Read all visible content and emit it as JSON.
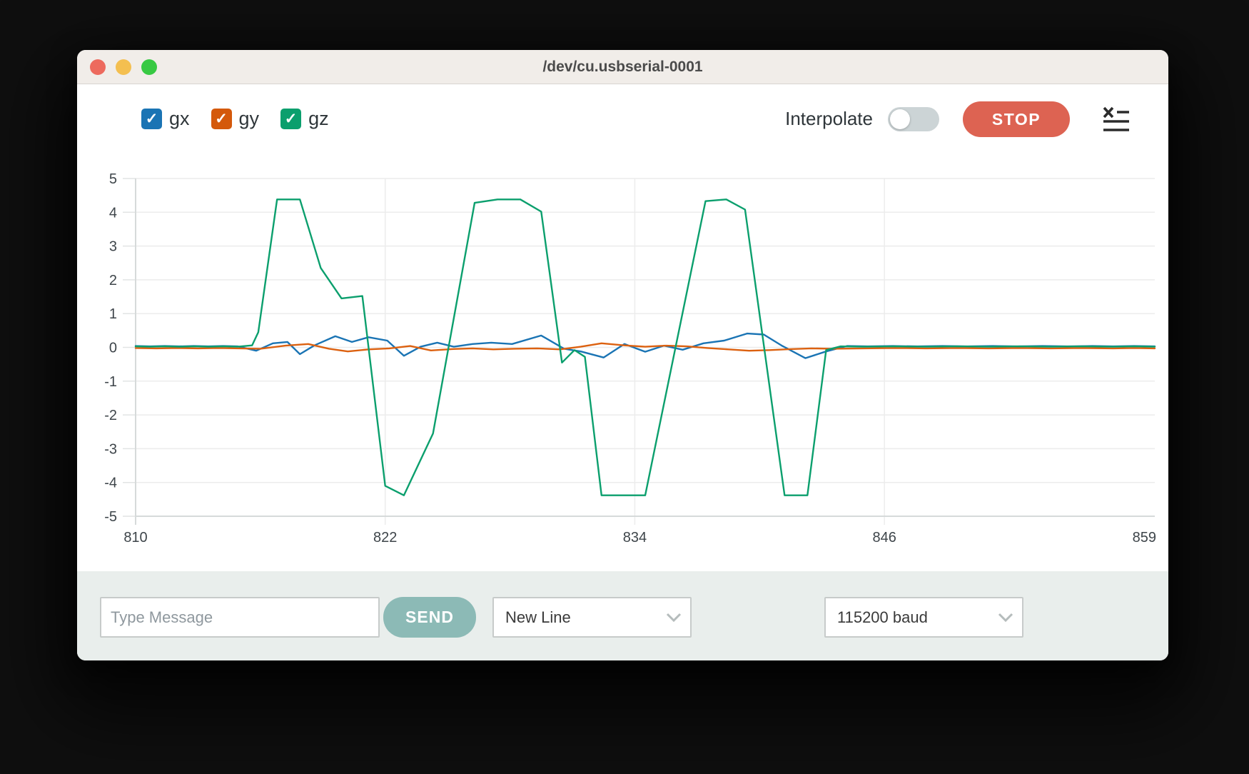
{
  "window": {
    "title": "/dev/cu.usbserial-0001",
    "traffic_lights": [
      "#ed6a5e",
      "#f4bf50",
      "#38c943"
    ]
  },
  "legend": {
    "items": [
      {
        "label": "gx",
        "color": "#1a74b4",
        "checked": true
      },
      {
        "label": "gy",
        "color": "#d4590b",
        "checked": true
      },
      {
        "label": "gz",
        "color": "#0b9f6d",
        "checked": true
      }
    ]
  },
  "toolbar": {
    "interpolate_label": "Interpolate",
    "interpolate_on": false,
    "stop_label": "STOP",
    "stop_color": "#dd6352"
  },
  "chart_data": {
    "type": "line",
    "title": "",
    "xlabel": "",
    "ylabel": "",
    "xlim": [
      810,
      859
    ],
    "ylim": [
      -5,
      5
    ],
    "x_ticks": [
      810,
      822,
      834,
      846,
      859
    ],
    "y_ticks": [
      5,
      4,
      3,
      2,
      1,
      0,
      -1,
      -2,
      -3,
      -4,
      -5
    ],
    "grid": true,
    "legend_position": "top-left-checkboxes",
    "series": [
      {
        "name": "gx",
        "color": "#1a74b4",
        "points": [
          [
            810,
            0.04
          ],
          [
            810.7,
            0.03
          ],
          [
            811.4,
            0.04
          ],
          [
            812.1,
            0.03
          ],
          [
            812.8,
            0.04
          ],
          [
            813.5,
            0.03
          ],
          [
            814.2,
            0.04
          ],
          [
            814.9,
            0.03
          ],
          [
            815.8,
            -0.1
          ],
          [
            816.6,
            0.12
          ],
          [
            817.3,
            0.16
          ],
          [
            817.9,
            -0.2
          ],
          [
            818.6,
            0.06
          ],
          [
            819.6,
            0.33
          ],
          [
            820.4,
            0.16
          ],
          [
            821.2,
            0.3
          ],
          [
            822.1,
            0.2
          ],
          [
            822.9,
            -0.25
          ],
          [
            823.7,
            0.02
          ],
          [
            824.5,
            0.14
          ],
          [
            825.3,
            0.02
          ],
          [
            826.2,
            0.1
          ],
          [
            827.1,
            0.14
          ],
          [
            828.1,
            0.1
          ],
          [
            829.5,
            0.35
          ],
          [
            830.6,
            -0.04
          ],
          [
            831.4,
            -0.12
          ],
          [
            832.5,
            -0.3
          ],
          [
            833.5,
            0.1
          ],
          [
            834.5,
            -0.13
          ],
          [
            835.4,
            0.05
          ],
          [
            836.3,
            -0.07
          ],
          [
            837.3,
            0.12
          ],
          [
            838.3,
            0.2
          ],
          [
            839.4,
            0.41
          ],
          [
            840.2,
            0.38
          ],
          [
            841.1,
            0.04
          ],
          [
            842.2,
            -0.32
          ],
          [
            843.2,
            -0.12
          ],
          [
            844.2,
            0.04
          ],
          [
            845.2,
            0.03
          ],
          [
            846.4,
            0.04
          ],
          [
            847.6,
            0.03
          ],
          [
            848.8,
            0.04
          ],
          [
            850,
            0.03
          ],
          [
            851.2,
            0.04
          ],
          [
            852.4,
            0.03
          ],
          [
            853.6,
            0.04
          ],
          [
            854.8,
            0.03
          ],
          [
            856,
            0.04
          ],
          [
            857,
            0.03
          ],
          [
            858,
            0.04
          ],
          [
            859,
            0.03
          ]
        ]
      },
      {
        "name": "gy",
        "color": "#dc6110",
        "points": [
          [
            810,
            -0.02
          ],
          [
            811,
            -0.03
          ],
          [
            812,
            -0.02
          ],
          [
            813,
            -0.03
          ],
          [
            814,
            -0.02
          ],
          [
            815,
            -0.03
          ],
          [
            816,
            -0.04
          ],
          [
            817.2,
            0.05
          ],
          [
            818.3,
            0.1
          ],
          [
            819.3,
            -0.04
          ],
          [
            820.2,
            -0.12
          ],
          [
            821.2,
            -0.06
          ],
          [
            822.2,
            -0.03
          ],
          [
            823.2,
            0.04
          ],
          [
            824.2,
            -0.09
          ],
          [
            825.2,
            -0.05
          ],
          [
            826.2,
            -0.03
          ],
          [
            827.2,
            -0.06
          ],
          [
            828.2,
            -0.04
          ],
          [
            829.3,
            -0.03
          ],
          [
            830.4,
            -0.06
          ],
          [
            831.4,
            0.02
          ],
          [
            832.4,
            0.12
          ],
          [
            833.5,
            0.06
          ],
          [
            834.5,
            0.02
          ],
          [
            835.5,
            0.05
          ],
          [
            836.5,
            0.03
          ],
          [
            837.5,
            -0.02
          ],
          [
            838.5,
            -0.06
          ],
          [
            839.5,
            -0.1
          ],
          [
            840.5,
            -0.08
          ],
          [
            841.5,
            -0.05
          ],
          [
            842.5,
            -0.03
          ],
          [
            843.5,
            -0.04
          ],
          [
            845,
            -0.03
          ],
          [
            846.5,
            -0.02
          ],
          [
            848,
            -0.03
          ],
          [
            849.5,
            -0.02
          ],
          [
            851,
            -0.03
          ],
          [
            852.5,
            -0.02
          ],
          [
            854,
            -0.03
          ],
          [
            855.5,
            -0.02
          ],
          [
            857,
            -0.03
          ],
          [
            858,
            -0.02
          ],
          [
            859,
            -0.03
          ]
        ]
      },
      {
        "name": "gz",
        "color": "#0b9f6d",
        "points": [
          [
            810,
            0.03
          ],
          [
            810.7,
            0.02
          ],
          [
            811.4,
            0.03
          ],
          [
            812.1,
            0.02
          ],
          [
            812.8,
            0.03
          ],
          [
            813.5,
            0.02
          ],
          [
            814.2,
            0.03
          ],
          [
            814.9,
            0.02
          ],
          [
            815.6,
            0.06
          ],
          [
            815.9,
            0.45
          ],
          [
            816.8,
            4.38
          ],
          [
            817.9,
            4.38
          ],
          [
            818.9,
            2.35
          ],
          [
            819.9,
            1.45
          ],
          [
            820.9,
            1.52
          ],
          [
            822,
            -4.1
          ],
          [
            822.9,
            -4.38
          ],
          [
            824.3,
            -2.55
          ],
          [
            826.3,
            4.28
          ],
          [
            827.4,
            4.38
          ],
          [
            828.5,
            4.38
          ],
          [
            829.5,
            4.02
          ],
          [
            830.5,
            -0.45
          ],
          [
            831.1,
            -0.08
          ],
          [
            831.6,
            -0.28
          ],
          [
            832.4,
            -4.38
          ],
          [
            833.4,
            -4.38
          ],
          [
            834.5,
            -4.38
          ],
          [
            837.4,
            4.33
          ],
          [
            838.4,
            4.38
          ],
          [
            839.3,
            4.08
          ],
          [
            841.2,
            -4.38
          ],
          [
            842.3,
            -4.38
          ],
          [
            843.2,
            -0.08
          ],
          [
            843.9,
            0.03
          ],
          [
            845,
            0.02
          ],
          [
            846.5,
            0.03
          ],
          [
            848,
            0.02
          ],
          [
            849.5,
            0.03
          ],
          [
            851,
            0.02
          ],
          [
            852.5,
            0.03
          ],
          [
            854,
            0.02
          ],
          [
            855.5,
            0.03
          ],
          [
            857,
            0.02
          ],
          [
            858,
            0.03
          ],
          [
            859,
            0.02
          ]
        ]
      }
    ]
  },
  "bottom_bar": {
    "message_placeholder": "Type Message",
    "send_label": "SEND",
    "send_color": "#8cbab6",
    "line_ending_value": "New Line",
    "baud_value": "115200 baud"
  }
}
